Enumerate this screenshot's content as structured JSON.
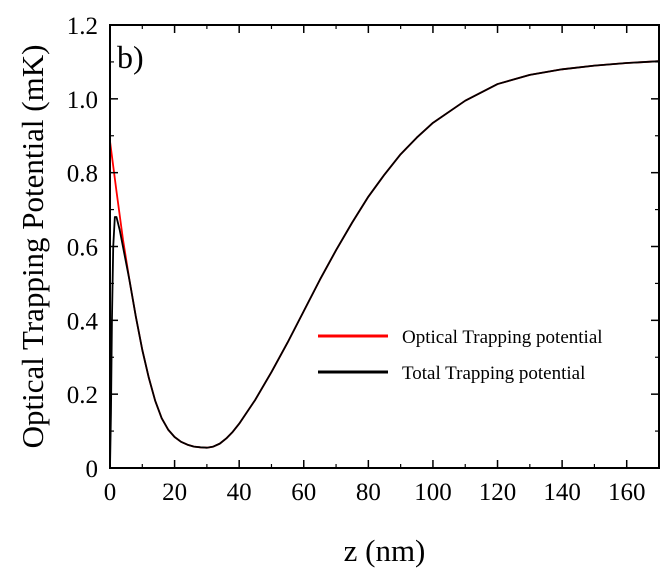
{
  "chart_data": {
    "type": "line",
    "panel_label": "b)",
    "xlabel": "z (nm)",
    "ylabel": "Optical Trapping Potential (mK)",
    "xlim": [
      0,
      170
    ],
    "ylim": [
      0,
      1.2
    ],
    "x_ticks": [
      0,
      20,
      40,
      60,
      80,
      100,
      120,
      140,
      160
    ],
    "y_ticks": [
      {
        "value": 0,
        "label": "0"
      },
      {
        "value": 0.2,
        "label": "0.2"
      },
      {
        "value": 0.4,
        "label": "0.4"
      },
      {
        "value": 0.6,
        "label": "0.6"
      },
      {
        "value": 0.8,
        "label": "0.8"
      },
      {
        "value": 1.0,
        "label": "1.0"
      },
      {
        "value": 1.2,
        "label": "1.2"
      }
    ],
    "grid": false,
    "legend_position": "center-right",
    "series": [
      {
        "name": "Optical Trapping potential",
        "color": "#ff0000",
        "x": [
          0,
          2,
          4,
          6,
          8,
          10,
          12,
          14,
          16,
          18,
          20,
          22,
          24,
          26,
          28,
          30,
          32,
          34,
          36,
          38,
          40,
          45,
          50,
          55,
          60,
          65,
          70,
          75,
          80,
          85,
          90,
          95,
          100,
          110,
          120,
          130,
          140,
          150,
          160,
          170
        ],
        "y": [
          0.885,
          0.75,
          0.62,
          0.51,
          0.41,
          0.32,
          0.245,
          0.182,
          0.135,
          0.104,
          0.084,
          0.071,
          0.063,
          0.058,
          0.056,
          0.055,
          0.058,
          0.066,
          0.08,
          0.098,
          0.12,
          0.185,
          0.26,
          0.34,
          0.425,
          0.51,
          0.59,
          0.665,
          0.735,
          0.795,
          0.85,
          0.895,
          0.935,
          0.995,
          1.04,
          1.065,
          1.08,
          1.09,
          1.097,
          1.102
        ]
      },
      {
        "name": "Total Trapping potential",
        "color": "#000000",
        "x": [
          0,
          0.3,
          0.6,
          1,
          1.5,
          2,
          3,
          4,
          6,
          8,
          10,
          12,
          14,
          16,
          18,
          20,
          22,
          24,
          26,
          28,
          30,
          32,
          34,
          36,
          38,
          40,
          45,
          50,
          55,
          60,
          65,
          70,
          75,
          80,
          85,
          90,
          95,
          100,
          110,
          120,
          130,
          140,
          150,
          160,
          170
        ],
        "y": [
          0.0,
          0.15,
          0.4,
          0.6,
          0.68,
          0.68,
          0.645,
          0.6,
          0.51,
          0.41,
          0.32,
          0.245,
          0.182,
          0.135,
          0.104,
          0.084,
          0.071,
          0.063,
          0.058,
          0.056,
          0.055,
          0.058,
          0.066,
          0.08,
          0.098,
          0.12,
          0.185,
          0.26,
          0.34,
          0.425,
          0.51,
          0.59,
          0.665,
          0.735,
          0.795,
          0.85,
          0.895,
          0.935,
          0.995,
          1.04,
          1.065,
          1.08,
          1.09,
          1.097,
          1.102
        ]
      }
    ]
  }
}
